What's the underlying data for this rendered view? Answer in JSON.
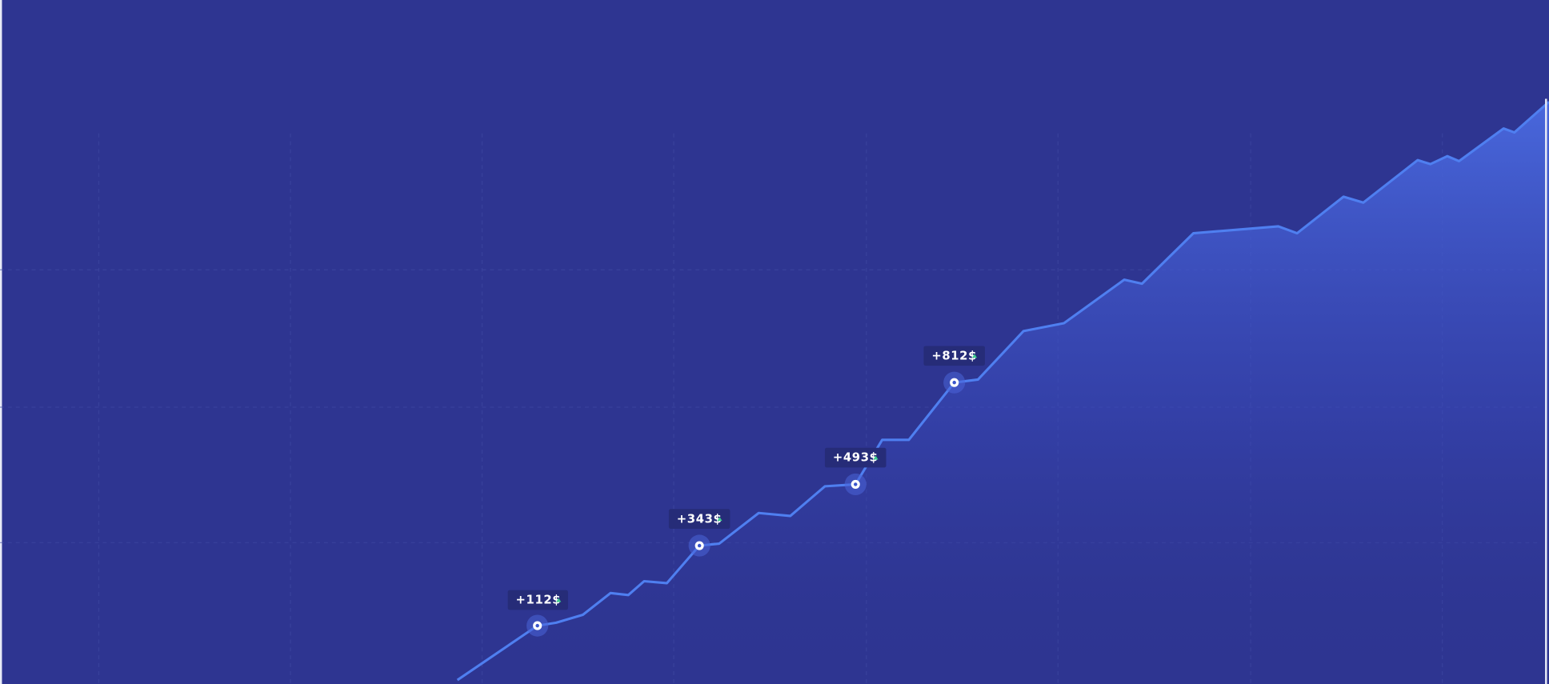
{
  "annotations": [
    "+112$",
    "+343$",
    "+493$",
    "+812$"
  ]
}
